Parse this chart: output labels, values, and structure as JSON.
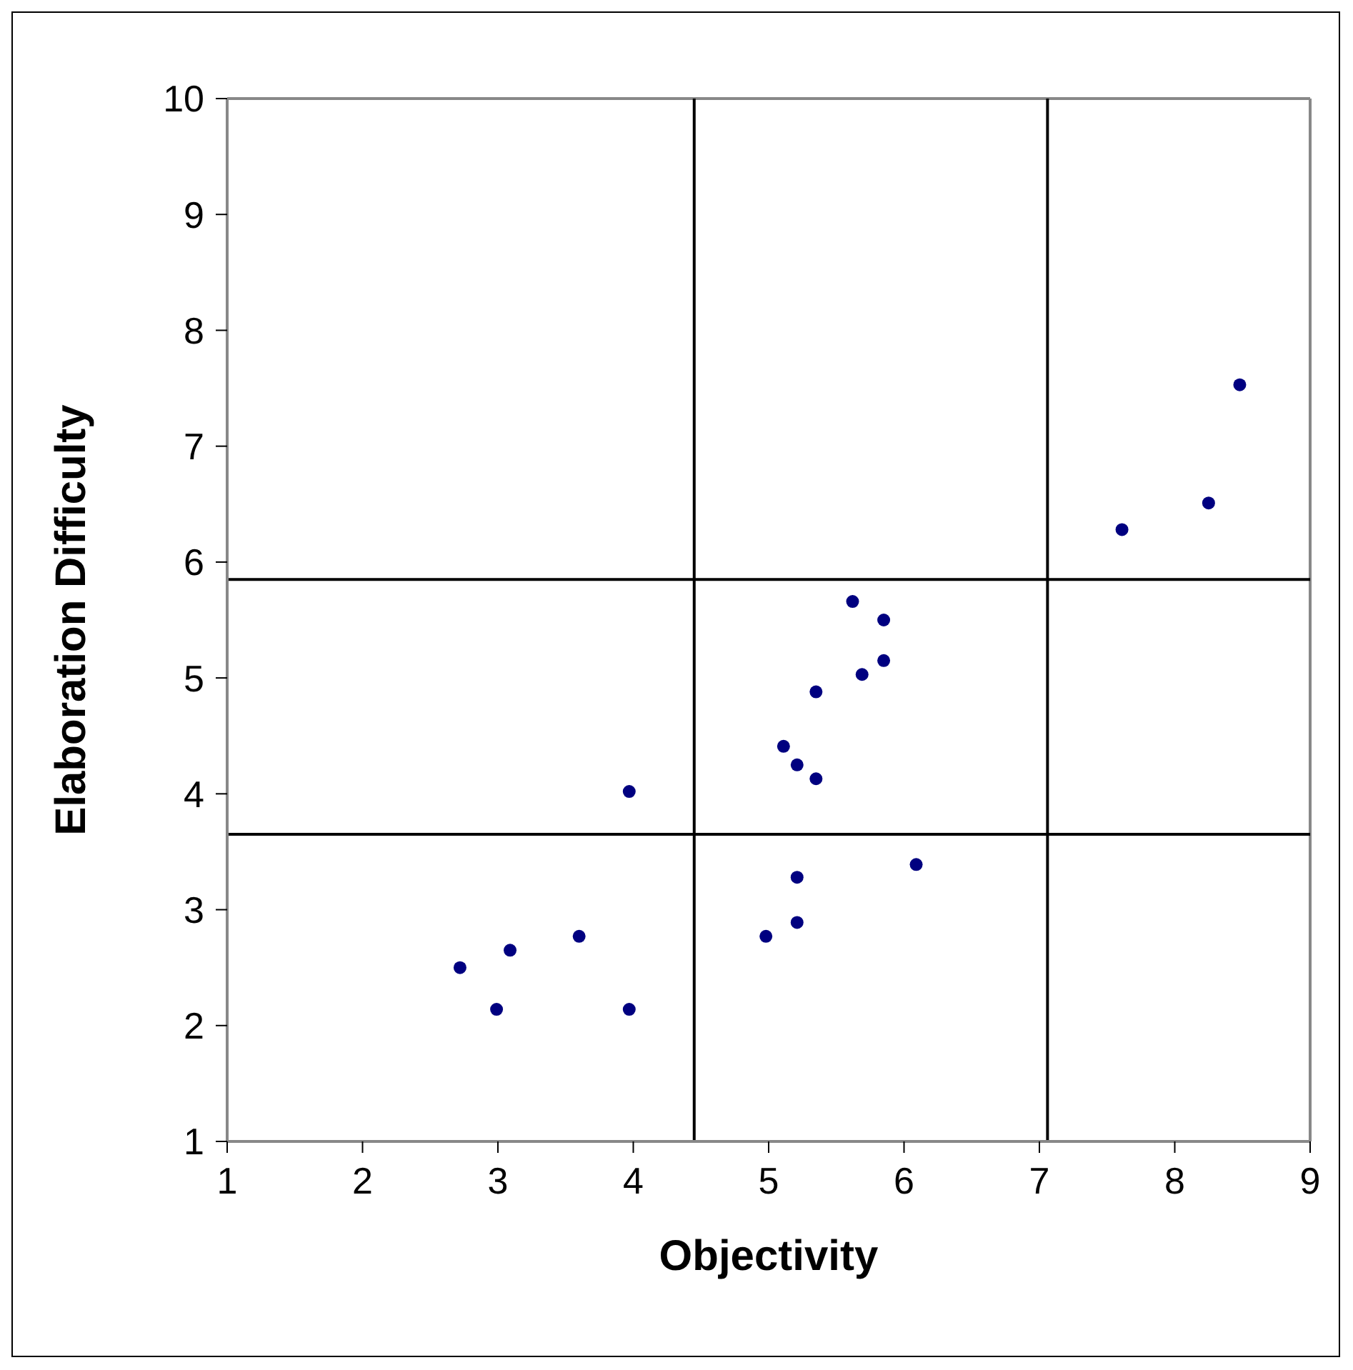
{
  "chart_data": {
    "type": "scatter",
    "xlabel": "Objectivity",
    "ylabel": "Elaboration Difficulty",
    "x": [
      2.72,
      2.99,
      3.09,
      3.6,
      3.97,
      3.97,
      4.98,
      5.21,
      5.21,
      6.09,
      5.11,
      5.21,
      5.35,
      5.35,
      5.69,
      5.85,
      5.85,
      5.62,
      7.61,
      8.25,
      8.48
    ],
    "values": [
      2.5,
      2.14,
      2.65,
      2.77,
      2.14,
      4.02,
      2.77,
      2.89,
      3.28,
      3.39,
      4.41,
      4.25,
      4.13,
      4.88,
      5.03,
      5.15,
      5.5,
      5.66,
      6.28,
      6.51,
      7.53
    ],
    "color": "#000080",
    "marker": "circle",
    "xlim": [
      1,
      9
    ],
    "ylim": [
      1,
      10
    ],
    "xticks": [
      1,
      2,
      3,
      4,
      5,
      6,
      7,
      8,
      9
    ],
    "yticks": [
      1,
      2,
      3,
      4,
      5,
      6,
      7,
      8,
      9,
      10
    ],
    "grid": false,
    "legend": false,
    "ref_lines": [
      {
        "axis": "x",
        "value": 4.45,
        "color": "#000000"
      },
      {
        "axis": "x",
        "value": 7.06,
        "color": "#000000"
      },
      {
        "axis": "y",
        "value": 5.85,
        "color": "#000000"
      },
      {
        "axis": "y",
        "value": 3.65,
        "color": "#000000"
      }
    ]
  }
}
